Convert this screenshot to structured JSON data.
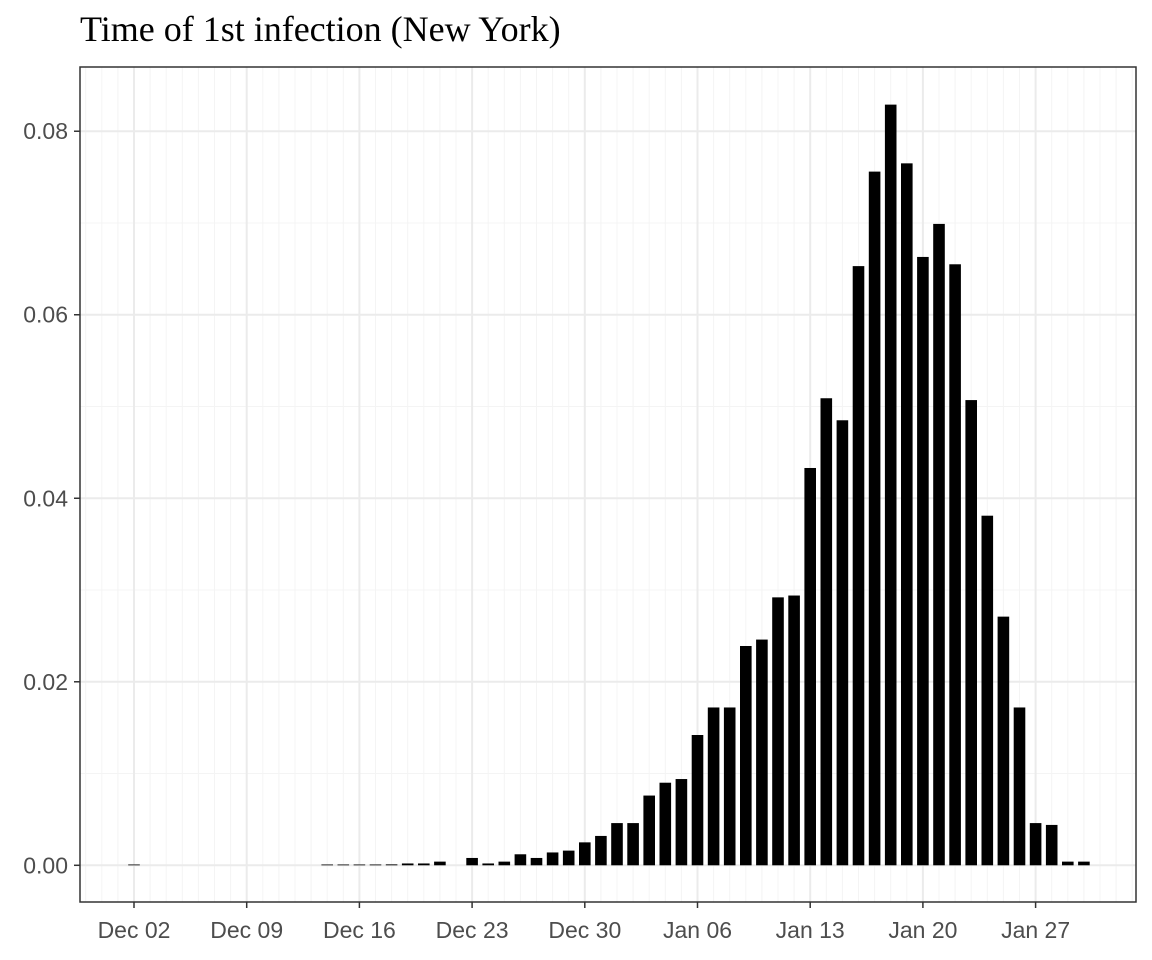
{
  "chart_data": {
    "type": "bar",
    "title": "Time of 1st infection (New York)",
    "xlabel": "",
    "ylabel": "",
    "x_start_date": "2019-12-02",
    "x_tick_labels": [
      "Dec 02",
      "Dec 09",
      "Dec 16",
      "Dec 23",
      "Dec 30",
      "Jan 06",
      "Jan 13",
      "Jan 20",
      "Jan 27"
    ],
    "y_tick_labels": [
      "0.00",
      "0.02",
      "0.04",
      "0.06",
      "0.08"
    ],
    "ylim": [
      -0.004,
      0.087
    ],
    "grid": true,
    "bar_color": "#000000",
    "series": [
      {
        "x": [
          "2019-12-02",
          "2019-12-03",
          "2019-12-04",
          "2019-12-05",
          "2019-12-06",
          "2019-12-07",
          "2019-12-08",
          "2019-12-09",
          "2019-12-10",
          "2019-12-11",
          "2019-12-12",
          "2019-12-13",
          "2019-12-14",
          "2019-12-15",
          "2019-12-16",
          "2019-12-17",
          "2019-12-18",
          "2019-12-19",
          "2019-12-20",
          "2019-12-21",
          "2019-12-22",
          "2019-12-23",
          "2019-12-24",
          "2019-12-25",
          "2019-12-26",
          "2019-12-27",
          "2019-12-28",
          "2019-12-29",
          "2019-12-30",
          "2019-12-31",
          "2020-01-01",
          "2020-01-02",
          "2020-01-03",
          "2020-01-04",
          "2020-01-05",
          "2020-01-06",
          "2020-01-07",
          "2020-01-08",
          "2020-01-09",
          "2020-01-10",
          "2020-01-11",
          "2020-01-12",
          "2020-01-13",
          "2020-01-14",
          "2020-01-15",
          "2020-01-16",
          "2020-01-17",
          "2020-01-18",
          "2020-01-19",
          "2020-01-20",
          "2020-01-21",
          "2020-01-22",
          "2020-01-23",
          "2020-01-24",
          "2020-01-25",
          "2020-01-26",
          "2020-01-27",
          "2020-01-28",
          "2020-01-29",
          "2020-01-30"
        ],
        "values": [
          5e-05,
          0,
          0,
          0,
          0,
          0,
          0,
          0,
          0,
          0,
          0,
          0,
          3e-05,
          4e-05,
          5e-05,
          8e-05,
          0.0001,
          0.0002,
          0.0002,
          0.0004,
          0,
          0.0008,
          0.0002,
          0.0004,
          0.0012,
          0.0008,
          0.0014,
          0.0016,
          0.0025,
          0.0032,
          0.0046,
          0.0046,
          0.0076,
          0.009,
          0.0094,
          0.0142,
          0.0172,
          0.0172,
          0.0239,
          0.0246,
          0.0292,
          0.0294,
          0.0433,
          0.0509,
          0.0485,
          0.0653,
          0.0756,
          0.0829,
          0.0765,
          0.0663,
          0.0699,
          0.0655,
          0.0507,
          0.0381,
          0.0271,
          0.0172,
          0.0046,
          0.0044,
          0.0004,
          0.0004
        ]
      }
    ]
  }
}
